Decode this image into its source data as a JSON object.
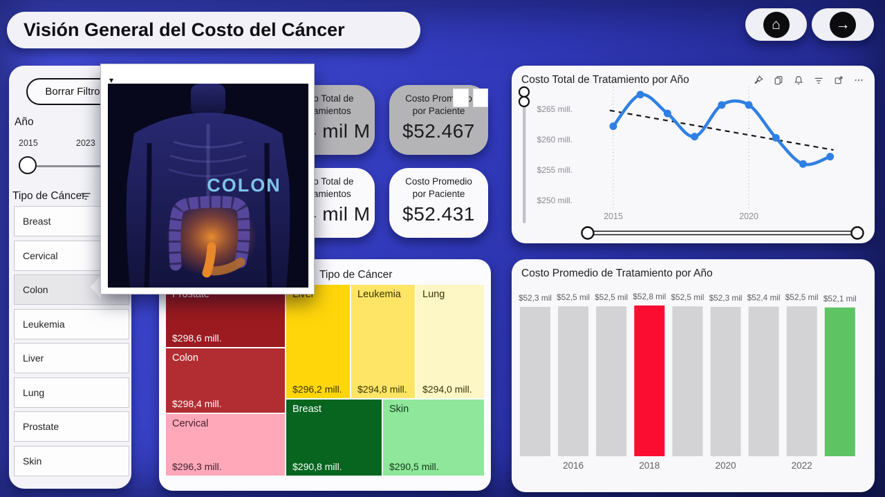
{
  "page": {
    "title": "Visión General del Costo del Cáncer"
  },
  "icons": {
    "home": "⌂",
    "arrow_right": "→",
    "caret_down": "▾"
  },
  "filters": {
    "clear_label": "Borrar Filtro",
    "year": {
      "label": "Año",
      "min": "2015",
      "max": "2023"
    },
    "cancer_type": {
      "label": "Tipo de Cáncer",
      "items": [
        {
          "label": "Breast",
          "selected": false
        },
        {
          "label": "Cervical",
          "selected": false
        },
        {
          "label": "Colon",
          "selected": true
        },
        {
          "label": "Leukemia",
          "selected": false
        },
        {
          "label": "Liver",
          "selected": false
        },
        {
          "label": "Lung",
          "selected": false
        },
        {
          "label": "Prostate",
          "selected": false
        },
        {
          "label": "Skin",
          "selected": false
        }
      ]
    }
  },
  "popup": {
    "image_label": "COLON"
  },
  "kpis": [
    {
      "title": "Costo Total de Tratamientos",
      "value": "$2,4 mil M",
      "variant": "gray"
    },
    {
      "title": "Costo Promedio por Paciente",
      "value": "$52.467",
      "variant": "gray"
    },
    {
      "title": "Costo Total de Tratamientos",
      "value": "$2,4 mil M",
      "variant": "white"
    },
    {
      "title": "Costo Promedio por Paciente",
      "value": "$52.431",
      "variant": "white"
    }
  ],
  "treemap": {
    "title": "Tipo de Cáncer"
  },
  "line_chart": {
    "title": "Costo Total de Tratamiento por Año",
    "header_icons": [
      "pin-icon",
      "copy-icon",
      "bell-icon",
      "filter-icon",
      "expand-icon",
      "more-icon"
    ]
  },
  "bar_chart": {
    "title": "Costo Promedio de Tratamiento por Año"
  },
  "chart_data": [
    {
      "type": "treemap",
      "title": "Tipo de Cáncer",
      "items": [
        {
          "key": "prostate",
          "label": "Prostate",
          "value": 298.6,
          "value_label": "$298,6 mill.",
          "color": "#9b1b20",
          "text": "#ffffff"
        },
        {
          "key": "colon",
          "label": "Colon",
          "value": 298.4,
          "value_label": "$298,4 mill.",
          "color": "#b22d31",
          "text": "#ffffff"
        },
        {
          "key": "cervical",
          "label": "Cervical",
          "value": 296.3,
          "value_label": "$296,3 mill.",
          "color": "#ffa8ba",
          "text": "#42232b"
        },
        {
          "key": "liver",
          "label": "Liver",
          "value": 296.2,
          "value_label": "$296,2 mill.",
          "color": "#ffd60a",
          "text": "#3a3408"
        },
        {
          "key": "leukemia",
          "label": "Leukemia",
          "value": 294.8,
          "value_label": "$294,8 mill.",
          "color": "#ffe566",
          "text": "#3a3408"
        },
        {
          "key": "lung",
          "label": "Lung",
          "value": 294.0,
          "value_label": "$294,0 mill.",
          "color": "#fdf6c5",
          "text": "#3a3408"
        },
        {
          "key": "breast",
          "label": "Breast",
          "value": 290.8,
          "value_label": "$290,8 mill.",
          "color": "#07651f",
          "text": "#ffffff"
        },
        {
          "key": "skin",
          "label": "Skin",
          "value": 290.5,
          "value_label": "$290,5 mill.",
          "color": "#8ee79a",
          "text": "#14391b"
        }
      ]
    },
    {
      "type": "line",
      "title": "Costo Total de Tratamiento por Año",
      "x": [
        2015,
        2016,
        2017,
        2018,
        2019,
        2020,
        2021,
        2022,
        2023
      ],
      "values": [
        262.2,
        267.4,
        264.3,
        260.5,
        265.7,
        265.7,
        260.3,
        256.0,
        257.2
      ],
      "trend": [
        264.8,
        258.3
      ],
      "y_ticks": [
        {
          "label": "$265 mill.",
          "value": 265
        },
        {
          "label": "$260 mill.",
          "value": 260
        },
        {
          "label": "$255 mill.",
          "value": 255
        },
        {
          "label": "$250 mill.",
          "value": 250
        }
      ],
      "x_ticks": [
        {
          "label": "2015",
          "value": 2015
        },
        {
          "label": "2020",
          "value": 2020
        }
      ],
      "series_color": "#2f80e3",
      "trend_color": "#151515",
      "grid": "dotted-vertical",
      "legend": "none"
    },
    {
      "type": "bar",
      "title": "Costo Promedio de Tratamiento por Año",
      "categories": [
        "2015",
        "2016",
        "2017",
        "2018",
        "2019",
        "2020",
        "2021",
        "2022",
        "2023"
      ],
      "values": [
        52.3,
        52.5,
        52.5,
        52.8,
        52.5,
        52.3,
        52.4,
        52.5,
        52.1
      ],
      "bar_labels": [
        "$52,3 mil",
        "$52,5 mil",
        "$52,5 mil",
        "$52,8 mil",
        "$52,5 mil",
        "$52,3 mil",
        "$52,4 mil",
        "$52,5 mil",
        "$52,1 mil"
      ],
      "colors": [
        "#d3d3d5",
        "#d3d3d5",
        "#d3d3d5",
        "#fb0d31",
        "#d3d3d5",
        "#d3d3d5",
        "#d3d3d5",
        "#d3d3d5",
        "#5ec463"
      ],
      "x_ticks": [
        "2016",
        "2018",
        "2020",
        "2022"
      ],
      "ylim": [
        0,
        55
      ],
      "legend": "none"
    }
  ]
}
